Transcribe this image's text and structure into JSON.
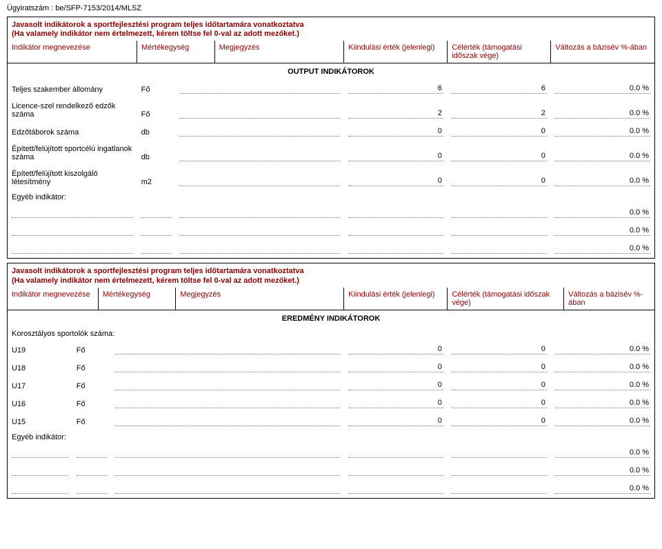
{
  "doc_ref_label": "Ügyiratszám : ",
  "doc_ref_value": "be/SFP-7153/2014/MLSZ",
  "section1": {
    "title": "Javasolt indikátorok a sportfejlesztési program teljes időtartamára vonatkoztatva",
    "subtitle": "(Ha valamely indikátor nem értelmezett, kérem töltse fel 0-val az adott mezőket.)",
    "headers": {
      "name": "Indikátor megnevezése",
      "unit": "Mértékegység",
      "note": "Megjegyzés",
      "start": "Kiindulási érték (jelenlegi)",
      "target": "Célérték (támogatási időszak vége)",
      "change": "Változás a bázisév %-ában"
    },
    "section_heading": "OUTPUT INDIKÁTOROK",
    "rows": [
      {
        "name": "Teljes szakember állomány",
        "unit": "Fő",
        "start": "6",
        "target": "6",
        "change": "0.0 %"
      },
      {
        "name": "Licence-szel rendelkező edzők száma",
        "unit": "Fő",
        "start": "2",
        "target": "2",
        "change": "0.0 %"
      },
      {
        "name": "Edzőtáborok száma",
        "unit": "db",
        "start": "0",
        "target": "0",
        "change": "0.0 %"
      },
      {
        "name": "Épített/felújított sportcélú ingatlanok száma",
        "unit": "db",
        "start": "0",
        "target": "0",
        "change": "0.0 %"
      },
      {
        "name": "Épített/felújított kiszolgáló létesítmény",
        "unit": "m2",
        "start": "0",
        "target": "0",
        "change": "0.0 %"
      }
    ],
    "other_label": "Egyéb indikátor:",
    "other_rows": [
      {
        "change": "0.0 %"
      },
      {
        "change": "0.0 %"
      },
      {
        "change": "0.0 %"
      }
    ]
  },
  "section2": {
    "title": "Javasolt indikátorok a sportfejlesztési program teljes időtartamára vonatkoztatva",
    "subtitle": "(Ha valamely indikátor nem értelmezett, kérem töltse fel 0-val az adott mezőket.)",
    "headers": {
      "name": "Indikátor megnevezése",
      "unit": "Mértékegység",
      "note": "Megjegyzés",
      "start": "Kiindulási érték (jelenlegi)",
      "target": "Célérték (támogatási időszak vége)",
      "change": "Változás a bázisév %-ában"
    },
    "section_heading": "EREDMÉNY INDIKÁTOROK",
    "subhead": "Korosztályos sportolók száma:",
    "rows": [
      {
        "name": "U19",
        "unit": "Fő",
        "start": "0",
        "target": "0",
        "change": "0.0 %"
      },
      {
        "name": "U18",
        "unit": "Fő",
        "start": "0",
        "target": "0",
        "change": "0.0 %"
      },
      {
        "name": "U17",
        "unit": "Fő",
        "start": "0",
        "target": "0",
        "change": "0.0 %"
      },
      {
        "name": "U16",
        "unit": "Fő",
        "start": "0",
        "target": "0",
        "change": "0.0 %"
      },
      {
        "name": "U15",
        "unit": "Fő",
        "start": "0",
        "target": "0",
        "change": "0.0 %"
      }
    ],
    "other_label": "Egyéb indikátor:",
    "other_rows": [
      {
        "change": "0.0 %"
      },
      {
        "change": "0.0 %"
      },
      {
        "change": "0.0 %"
      }
    ]
  },
  "colors": {
    "heading_red": "#8b0000",
    "border": "#000000",
    "dotted": "#777777",
    "bg": "#ffffff"
  }
}
